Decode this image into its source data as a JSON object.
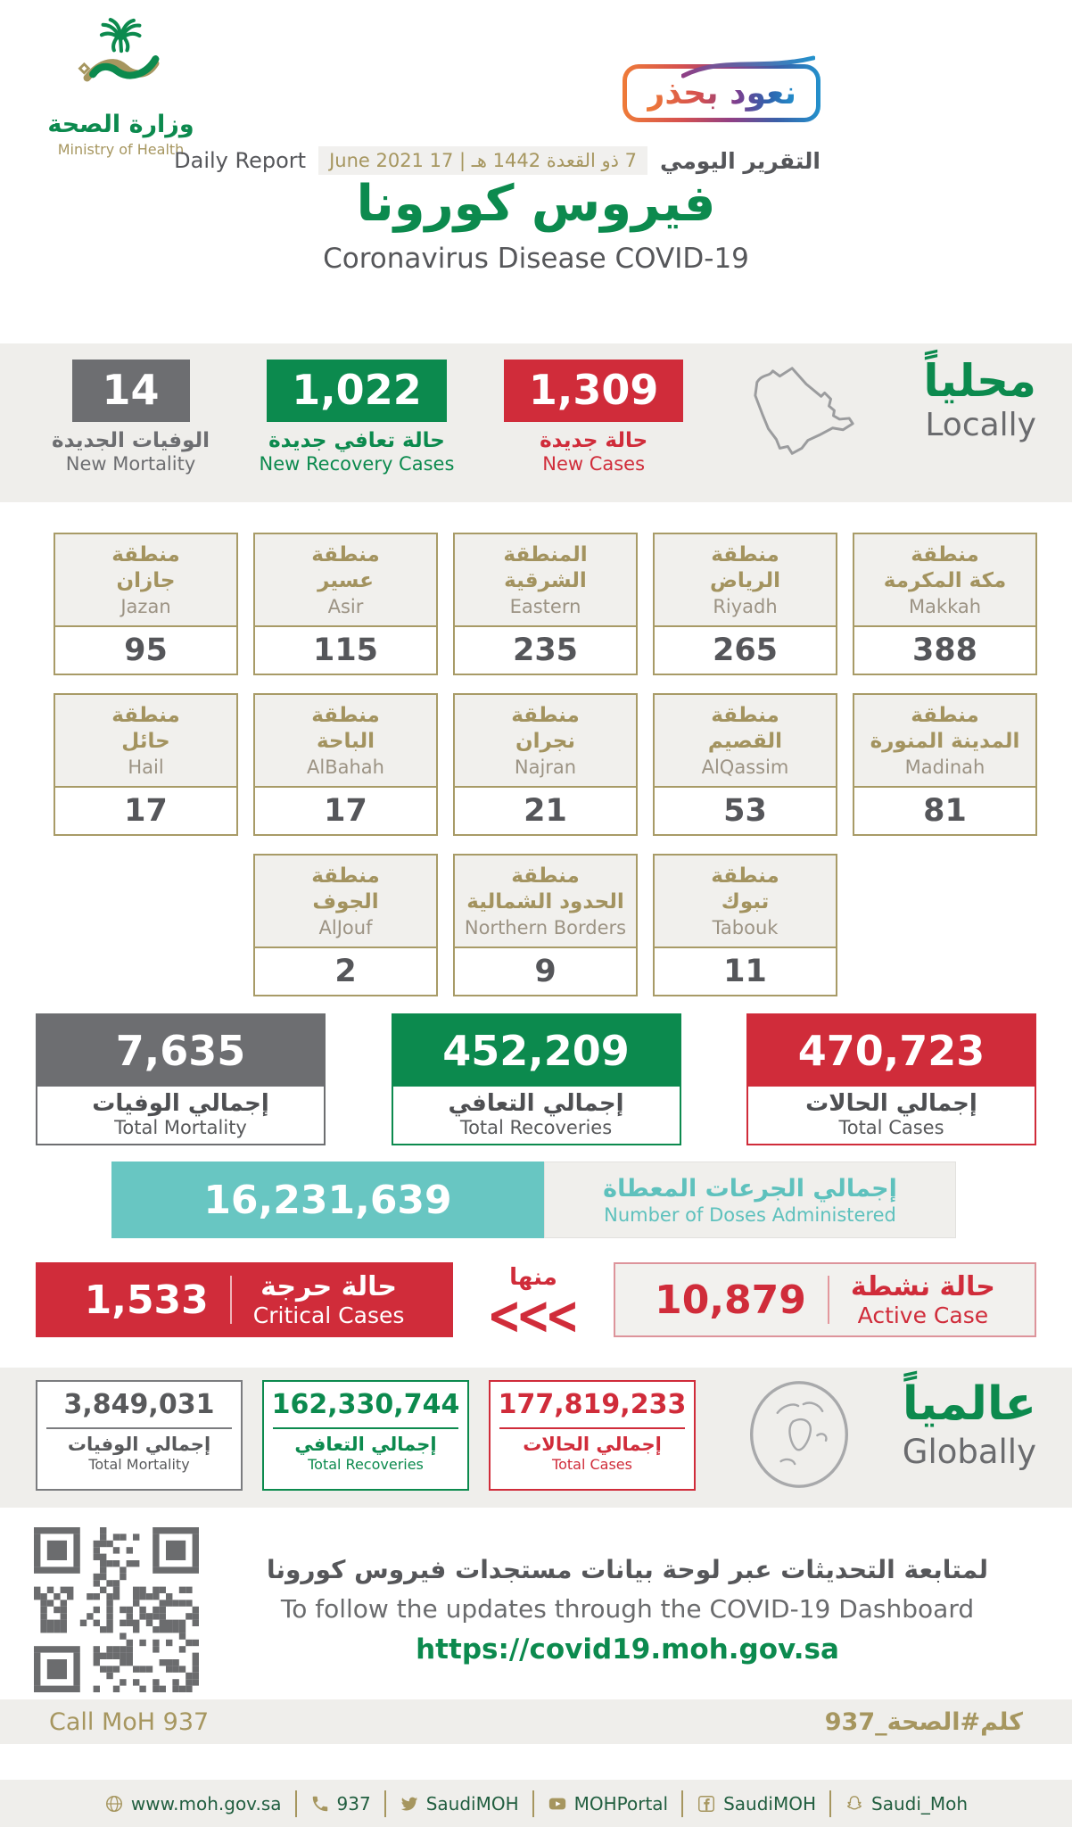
{
  "header": {
    "ministry_ar": "وزارة الصحة",
    "ministry_en": "Ministry of Health",
    "badge_label": "نعود بحذر",
    "report_ar": "التقرير اليومي",
    "date": "7 ذو القعدة 1442 هـ | 17 June 2021",
    "report_en": "Daily Report",
    "title_ar": "فيروس كورونا",
    "title_en": "Coronavirus Disease COVID-19"
  },
  "locally": {
    "label_ar": "محلياً",
    "label_en": "Locally",
    "mortality": {
      "value": "14",
      "label_ar": "الوفيات الجديدة",
      "label_en": "New Mortality"
    },
    "recoveries": {
      "value": "1,022",
      "label_ar": "حالة تعافي جديدة",
      "label_en": "New Recovery Cases"
    },
    "cases": {
      "value": "1,309",
      "label_ar": "حالة جديدة",
      "label_en": "New Cases"
    }
  },
  "regions": {
    "rows": [
      [
        {
          "ar1": "منطقة",
          "ar2": "مكة المكرمة",
          "en": "Makkah",
          "value": "388"
        },
        {
          "ar1": "منطقة",
          "ar2": "الرياض",
          "en": "Riyadh",
          "value": "265"
        },
        {
          "ar1": "المنطقة",
          "ar2": "الشرقية",
          "en": "Eastern",
          "value": "235"
        },
        {
          "ar1": "منطقة",
          "ar2": "عسير",
          "en": "Asir",
          "value": "115"
        },
        {
          "ar1": "منطقة",
          "ar2": "جازان",
          "en": "Jazan",
          "value": "95"
        }
      ],
      [
        {
          "ar1": "منطقة",
          "ar2": "المدينة المنورة",
          "en": "Madinah",
          "value": "81"
        },
        {
          "ar1": "منطقة",
          "ar2": "القصيم",
          "en": "AlQassim",
          "value": "53"
        },
        {
          "ar1": "منطقة",
          "ar2": "نجران",
          "en": "Najran",
          "value": "21"
        },
        {
          "ar1": "منطقة",
          "ar2": "الباحة",
          "en": "AlBahah",
          "value": "17"
        },
        {
          "ar1": "منطقة",
          "ar2": "حائل",
          "en": "Hail",
          "value": "17"
        }
      ],
      [
        {
          "ar1": "منطقة",
          "ar2": "تبوك",
          "en": "Tabouk",
          "value": "11"
        },
        {
          "ar1": "منطقة",
          "ar2": "الحدود الشمالية",
          "en": "Northern Borders",
          "value": "9"
        },
        {
          "ar1": "منطقة",
          "ar2": "الجوف",
          "en": "AlJouf",
          "value": "2"
        }
      ]
    ]
  },
  "totals_local": [
    {
      "value": "7,635",
      "label_ar": "إجمالي الوفيات",
      "label_en": "Total Mortality",
      "theme": "gray"
    },
    {
      "value": "452,209",
      "label_ar": "إجمالي التعافي",
      "label_en": "Total Recoveries",
      "theme": "green"
    },
    {
      "value": "470,723",
      "label_ar": "إجمالي الحالات",
      "label_en": "Total Cases",
      "theme": "red"
    }
  ],
  "doses": {
    "value": "16,231,639",
    "label_ar": "إجمالي الجرعات المعطاة",
    "label_en": "Number of Doses Administered"
  },
  "critical": {
    "value": "1,533",
    "label_ar": "حالة حرجة",
    "label_en": "Critical Cases"
  },
  "of_which": {
    "label_ar": "منها",
    "chevrons": "<<<"
  },
  "active": {
    "value": "10,879",
    "label_ar": "حالة نشطة",
    "label_en": "Active Case"
  },
  "globally": {
    "label_ar": "عالمياً",
    "label_en": "Globally",
    "boxes": [
      {
        "value": "3,849,031",
        "label_ar": "إجمالي الوفيات",
        "label_en": "Total Mortality",
        "theme": "gray"
      },
      {
        "value": "162,330,744",
        "label_ar": "إجمالي التعافي",
        "label_en": "Total Recoveries",
        "theme": "green"
      },
      {
        "value": "177,819,233",
        "label_ar": "إجمالي الحالات",
        "label_en": "Total Cases",
        "theme": "red"
      }
    ]
  },
  "dashboard": {
    "line_ar": "لمتابعة التحديثات عبر لوحة بيانات مستجدات فيروس كورونا",
    "line_en": "To follow the updates through the COVID-19 Dashboard",
    "url": "https://covid19.moh.gov.sa"
  },
  "call": {
    "en": "Call MoH 937",
    "ar": "كلم#الصحة_937"
  },
  "footer": {
    "items": [
      {
        "icon": "globe",
        "label": "www.moh.gov.sa"
      },
      {
        "icon": "phone",
        "label": "937"
      },
      {
        "icon": "twitter",
        "label": "SaudiMOH"
      },
      {
        "icon": "youtube",
        "label": "MOHPortal"
      },
      {
        "icon": "facebook",
        "label": "SaudiMOH"
      },
      {
        "icon": "snapchat",
        "label": "Saudi_Moh"
      }
    ]
  },
  "colors": {
    "green": "#0c8a4e",
    "red": "#d02c3a",
    "dark_gray": "#6d6e71",
    "teal": "#68c6c2",
    "gold": "#a6965f",
    "band_gray": "#efeeeb"
  }
}
